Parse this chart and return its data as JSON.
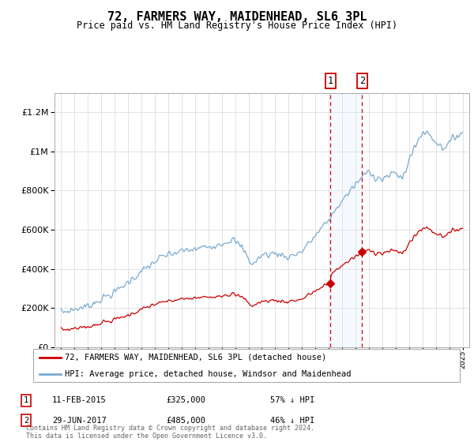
{
  "title": "72, FARMERS WAY, MAIDENHEAD, SL6 3PL",
  "subtitle": "Price paid vs. HM Land Registry's House Price Index (HPI)",
  "legend_line1": "72, FARMERS WAY, MAIDENHEAD, SL6 3PL (detached house)",
  "legend_line2": "HPI: Average price, detached house, Windsor and Maidenhead",
  "label1_date": "11-FEB-2015",
  "label1_price": "£325,000",
  "label1_hpi": "57% ↓ HPI",
  "label2_date": "29-JUN-2017",
  "label2_price": "£485,000",
  "label2_hpi": "46% ↓ HPI",
  "marker1_year": 2015.11,
  "marker1_value": 325000,
  "marker2_year": 2017.49,
  "marker2_value": 485000,
  "red_color": "#cc0000",
  "blue_color": "#7aabcf",
  "shade_color": "#ddeeff",
  "footer": "Contains HM Land Registry data © Crown copyright and database right 2024.\nThis data is licensed under the Open Government Licence v3.0.",
  "ylim": [
    0,
    1300000
  ],
  "xlim_start": 1994.5,
  "xlim_end": 2025.5
}
